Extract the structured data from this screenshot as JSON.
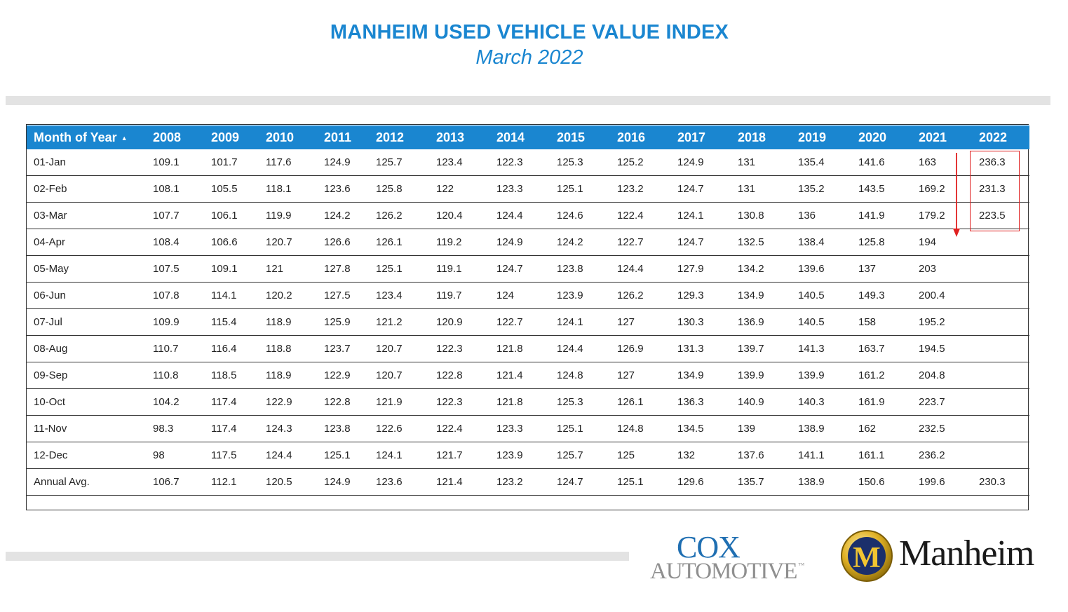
{
  "header": {
    "title": "MANHEIM USED VEHICLE VALUE INDEX",
    "subtitle": "March 2022"
  },
  "table": {
    "first_column_header": "Month of Year",
    "sort_indicator": "▲",
    "years": [
      "2008",
      "2009",
      "2010",
      "2011",
      "2012",
      "2013",
      "2014",
      "2015",
      "2016",
      "2017",
      "2018",
      "2019",
      "2020",
      "2021",
      "2022"
    ],
    "rows": [
      {
        "label": "01-Jan",
        "values": [
          "109.1",
          "101.7",
          "117.6",
          "124.9",
          "125.7",
          "123.4",
          "122.3",
          "125.3",
          "125.2",
          "124.9",
          "131",
          "135.4",
          "141.6",
          "163",
          "236.3"
        ]
      },
      {
        "label": "02-Feb",
        "values": [
          "108.1",
          "105.5",
          "118.1",
          "123.6",
          "125.8",
          "122",
          "123.3",
          "125.1",
          "123.2",
          "124.7",
          "131",
          "135.2",
          "143.5",
          "169.2",
          "231.3"
        ]
      },
      {
        "label": "03-Mar",
        "values": [
          "107.7",
          "106.1",
          "119.9",
          "124.2",
          "126.2",
          "120.4",
          "124.4",
          "124.6",
          "122.4",
          "124.1",
          "130.8",
          "136",
          "141.9",
          "179.2",
          "223.5"
        ]
      },
      {
        "label": "04-Apr",
        "values": [
          "108.4",
          "106.6",
          "120.7",
          "126.6",
          "126.1",
          "119.2",
          "124.9",
          "124.2",
          "122.7",
          "124.7",
          "132.5",
          "138.4",
          "125.8",
          "194",
          ""
        ]
      },
      {
        "label": "05-May",
        "values": [
          "107.5",
          "109.1",
          "121",
          "127.8",
          "125.1",
          "119.1",
          "124.7",
          "123.8",
          "124.4",
          "127.9",
          "134.2",
          "139.6",
          "137",
          "203",
          ""
        ]
      },
      {
        "label": "06-Jun",
        "values": [
          "107.8",
          "114.1",
          "120.2",
          "127.5",
          "123.4",
          "119.7",
          "124",
          "123.9",
          "126.2",
          "129.3",
          "134.9",
          "140.5",
          "149.3",
          "200.4",
          ""
        ]
      },
      {
        "label": "07-Jul",
        "values": [
          "109.9",
          "115.4",
          "118.9",
          "125.9",
          "121.2",
          "120.9",
          "122.7",
          "124.1",
          "127",
          "130.3",
          "136.9",
          "140.5",
          "158",
          "195.2",
          ""
        ]
      },
      {
        "label": "08-Aug",
        "values": [
          "110.7",
          "116.4",
          "118.8",
          "123.7",
          "120.7",
          "122.3",
          "121.8",
          "124.4",
          "126.9",
          "131.3",
          "139.7",
          "141.3",
          "163.7",
          "194.5",
          ""
        ]
      },
      {
        "label": "09-Sep",
        "values": [
          "110.8",
          "118.5",
          "118.9",
          "122.9",
          "120.7",
          "122.8",
          "121.4",
          "124.8",
          "127",
          "134.9",
          "139.9",
          "139.9",
          "161.2",
          "204.8",
          ""
        ]
      },
      {
        "label": "10-Oct",
        "values": [
          "104.2",
          "117.4",
          "122.9",
          "122.8",
          "121.9",
          "122.3",
          "121.8",
          "125.3",
          "126.1",
          "136.3",
          "140.9",
          "140.3",
          "161.9",
          "223.7",
          ""
        ]
      },
      {
        "label": "11-Nov",
        "values": [
          "98.3",
          "117.4",
          "124.3",
          "123.8",
          "122.6",
          "122.4",
          "123.3",
          "125.1",
          "124.8",
          "134.5",
          "139",
          "138.9",
          "162",
          "232.5",
          ""
        ]
      },
      {
        "label": "12-Dec",
        "values": [
          "98",
          "117.5",
          "124.4",
          "125.1",
          "124.1",
          "121.7",
          "123.9",
          "125.7",
          "125",
          "132",
          "137.6",
          "141.1",
          "161.1",
          "236.2",
          ""
        ]
      },
      {
        "label": "Annual Avg.",
        "values": [
          "106.7",
          "112.1",
          "120.5",
          "124.9",
          "123.6",
          "121.4",
          "123.2",
          "124.7",
          "125.1",
          "129.6",
          "135.7",
          "138.9",
          "150.6",
          "199.6",
          "230.3"
        ]
      }
    ]
  },
  "logos": {
    "cox_line1": "COX",
    "cox_line2": "AUTOMOTIVE",
    "cox_tm": "™",
    "manheim_badge_letter": "M",
    "manheim_word": "Manheim"
  },
  "colors": {
    "brand_blue": "#1a86d0",
    "annotation_red": "#e02020",
    "badge_gold": "#d4a017",
    "cox_blue": "#1f6fb2"
  }
}
